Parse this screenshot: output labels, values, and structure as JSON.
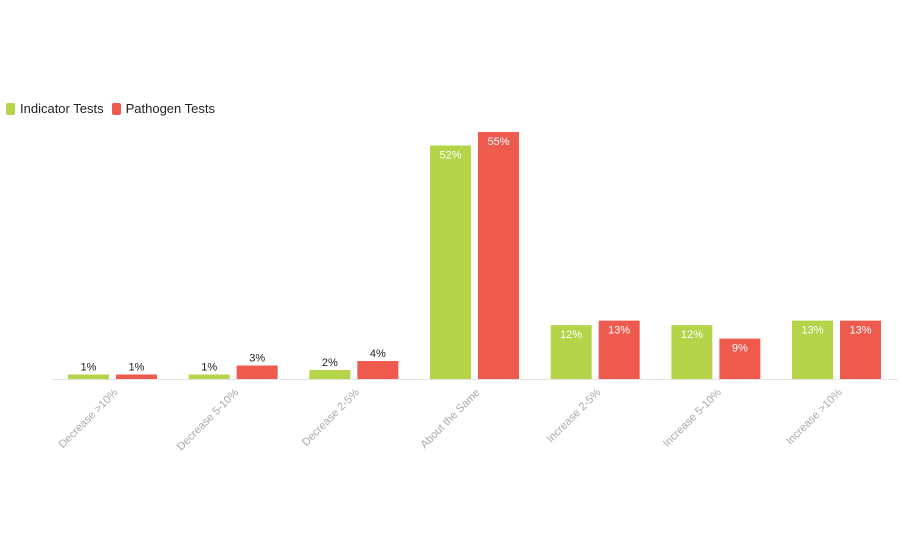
{
  "chart_data": {
    "type": "bar",
    "title": "",
    "xlabel": "",
    "ylabel": "",
    "ylim": [
      0,
      55
    ],
    "grid": false,
    "legend_position": "top-left",
    "categories": [
      "Decrease >10%",
      "Decrease 5-10%",
      "Decrease 2-5%",
      "About the Same",
      "Increase 2-5%",
      "Increase 5-10%",
      "Increase >10%"
    ],
    "series": [
      {
        "name": "Indicator Tests",
        "color": "#b5d44a",
        "values": [
          1,
          1,
          2,
          52,
          12,
          12,
          13
        ],
        "labels": [
          "1%",
          "1%",
          "2%",
          "52%",
          "12%",
          "12%",
          "13%"
        ]
      },
      {
        "name": "Pathogen Tests",
        "color": "#ee5a4d",
        "values": [
          1,
          3,
          4,
          55,
          13,
          9,
          13
        ],
        "labels": [
          "1%",
          "3%",
          "4%",
          "55%",
          "13%",
          "9%",
          "13%"
        ]
      }
    ]
  }
}
